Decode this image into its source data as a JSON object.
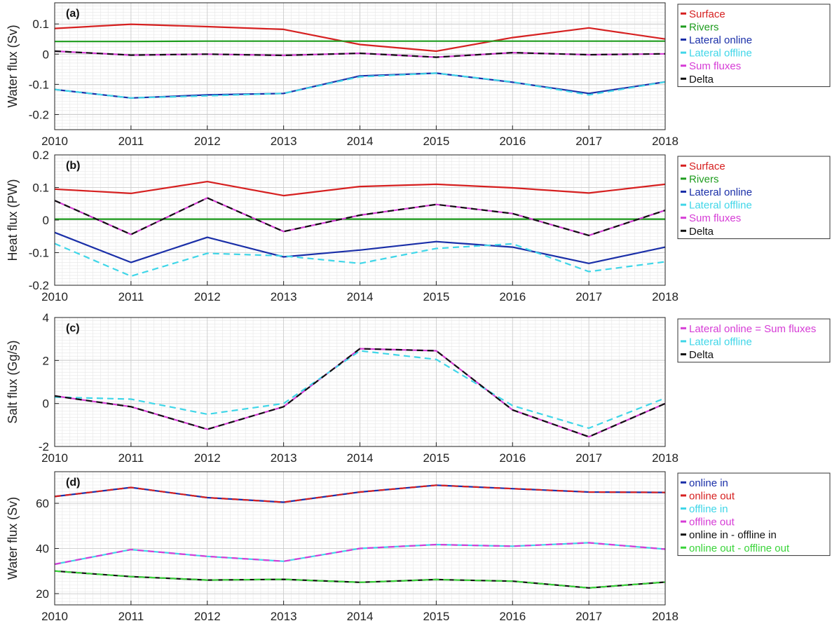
{
  "chart_data": [
    {
      "type": "line",
      "panel_label": "(a)",
      "ylabel": "Water flux (Sv)",
      "xlim": [
        2010,
        2018
      ],
      "ylim": [
        -0.25,
        0.17
      ],
      "yticks": [
        0.1,
        0,
        -0.1,
        -0.2
      ],
      "xticks": [
        2010,
        2011,
        2012,
        2013,
        2014,
        2015,
        2016,
        2017,
        2018
      ],
      "grid": "minor",
      "legend_position": "outside-right",
      "x": [
        2010,
        2011,
        2012,
        2013,
        2014,
        2015,
        2016,
        2017,
        2018
      ],
      "series": [
        {
          "name": "Surface",
          "color": "#d62020",
          "dash": "solid",
          "values": [
            0.085,
            0.099,
            0.091,
            0.082,
            0.032,
            0.01,
            0.055,
            0.087,
            0.05
          ]
        },
        {
          "name": "Rivers",
          "color": "#1e9c1e",
          "dash": "solid",
          "values": [
            0.042,
            0.042,
            0.043,
            0.043,
            0.043,
            0.043,
            0.043,
            0.043,
            0.043
          ]
        },
        {
          "name": "Lateral online",
          "color": "#1a2fa8",
          "dash": "solid",
          "values": [
            -0.117,
            -0.145,
            -0.135,
            -0.13,
            -0.072,
            -0.063,
            -0.093,
            -0.13,
            -0.092
          ]
        },
        {
          "name": "Lateral offline",
          "color": "#3fd6e8",
          "dash": "dashed",
          "values": [
            -0.117,
            -0.145,
            -0.138,
            -0.13,
            -0.075,
            -0.063,
            -0.092,
            -0.135,
            -0.092
          ]
        },
        {
          "name": "Sum fluxes",
          "color": "#d63cd6",
          "dash": "solid",
          "values": [
            0.01,
            -0.003,
            0.0,
            -0.004,
            0.003,
            -0.01,
            0.005,
            -0.002,
            0.001
          ]
        },
        {
          "name": "Delta",
          "color": "#111111",
          "dash": "dashed",
          "values": [
            0.01,
            -0.003,
            0.0,
            -0.004,
            0.003,
            -0.01,
            0.005,
            -0.002,
            0.001
          ]
        }
      ]
    },
    {
      "type": "line",
      "panel_label": "(b)",
      "ylabel": "Heat flux (PW)",
      "xlim": [
        2010,
        2018
      ],
      "ylim": [
        -0.2,
        0.2
      ],
      "yticks": [
        0.2,
        0.1,
        0,
        -0.1,
        -0.2
      ],
      "xticks": [
        2010,
        2011,
        2012,
        2013,
        2014,
        2015,
        2016,
        2017,
        2018
      ],
      "grid": "minor",
      "legend_position": "outside-right",
      "x": [
        2010,
        2011,
        2012,
        2013,
        2014,
        2015,
        2016,
        2017,
        2018
      ],
      "series": [
        {
          "name": "Surface",
          "color": "#d62020",
          "dash": "solid",
          "values": [
            0.095,
            0.082,
            0.118,
            0.075,
            0.103,
            0.11,
            0.099,
            0.083,
            0.11
          ]
        },
        {
          "name": "Rivers",
          "color": "#1e9c1e",
          "dash": "solid",
          "values": [
            0.003,
            0.003,
            0.003,
            0.003,
            0.003,
            0.003,
            0.003,
            0.003,
            0.003
          ]
        },
        {
          "name": "Lateral online",
          "color": "#1a2fa8",
          "dash": "solid",
          "values": [
            -0.038,
            -0.13,
            -0.053,
            -0.113,
            -0.092,
            -0.066,
            -0.083,
            -0.133,
            -0.083
          ]
        },
        {
          "name": "Lateral offline",
          "color": "#3fd6e8",
          "dash": "dashed",
          "values": [
            -0.072,
            -0.172,
            -0.102,
            -0.11,
            -0.133,
            -0.087,
            -0.073,
            -0.158,
            -0.128
          ]
        },
        {
          "name": "Sum fluxes",
          "color": "#d63cd6",
          "dash": "solid",
          "values": [
            0.06,
            -0.044,
            0.068,
            -0.035,
            0.015,
            0.048,
            0.02,
            -0.047,
            0.03
          ]
        },
        {
          "name": "Delta",
          "color": "#111111",
          "dash": "dashed",
          "values": [
            0.06,
            -0.044,
            0.068,
            -0.035,
            0.015,
            0.048,
            0.02,
            -0.047,
            0.03
          ]
        }
      ]
    },
    {
      "type": "line",
      "panel_label": "(c)",
      "ylabel": "Salt flux (Gg/s)",
      "xlim": [
        2010,
        2018
      ],
      "ylim": [
        -2,
        4
      ],
      "yticks": [
        4,
        2,
        0,
        -2
      ],
      "xticks": [
        2010,
        2011,
        2012,
        2013,
        2014,
        2015,
        2016,
        2017,
        2018
      ],
      "grid": "minor",
      "legend_position": "outside-right",
      "x": [
        2010,
        2011,
        2012,
        2013,
        2014,
        2015,
        2016,
        2017,
        2018
      ],
      "series": [
        {
          "name": "Lateral online = Sum fluxes",
          "color": "#d63cd6",
          "dash": "solid",
          "values": [
            0.35,
            -0.15,
            -1.2,
            -0.15,
            2.55,
            2.45,
            -0.3,
            -1.55,
            0.0
          ]
        },
        {
          "name": "Lateral offline",
          "color": "#3fd6e8",
          "dash": "dashed",
          "values": [
            0.3,
            0.2,
            -0.5,
            0.0,
            2.45,
            2.05,
            -0.1,
            -1.15,
            0.25
          ]
        },
        {
          "name": "Delta",
          "color": "#111111",
          "dash": "dashed",
          "values": [
            0.35,
            -0.15,
            -1.2,
            -0.15,
            2.55,
            2.45,
            -0.3,
            -1.55,
            0.0
          ]
        }
      ]
    },
    {
      "type": "line",
      "panel_label": "(d)",
      "ylabel": "Water flux (Sv)",
      "xlim": [
        2010,
        2018
      ],
      "ylim": [
        15,
        74
      ],
      "yticks": [
        60,
        40,
        20
      ],
      "xticks": [
        2010,
        2011,
        2012,
        2013,
        2014,
        2015,
        2016,
        2017,
        2018
      ],
      "grid": "minor",
      "legend_position": "outside-right",
      "x": [
        2010,
        2011,
        2012,
        2013,
        2014,
        2015,
        2016,
        2017,
        2018
      ],
      "series": [
        {
          "name": "online in",
          "color": "#1a2fa8",
          "dash": "solid",
          "values": [
            63.0,
            67.0,
            62.5,
            60.5,
            65.0,
            68.0,
            66.5,
            65.0,
            64.8
          ]
        },
        {
          "name": "online out",
          "color": "#d62020",
          "dash": "dashed",
          "values": [
            63.0,
            67.0,
            62.5,
            60.5,
            65.0,
            68.0,
            66.5,
            65.0,
            64.8
          ]
        },
        {
          "name": "offline in",
          "color": "#3fd6e8",
          "dash": "solid",
          "values": [
            33.0,
            39.5,
            36.5,
            34.3,
            40.0,
            41.7,
            41.0,
            42.5,
            39.7
          ]
        },
        {
          "name": "offline out",
          "color": "#d63cd6",
          "dash": "dashed",
          "values": [
            33.0,
            39.5,
            36.5,
            34.3,
            40.0,
            41.7,
            41.0,
            42.5,
            39.7
          ]
        },
        {
          "name": "online in - offline in",
          "color": "#111111",
          "dash": "solid",
          "values": [
            30.0,
            27.5,
            26.0,
            26.3,
            25.0,
            26.2,
            25.5,
            22.5,
            25.1
          ]
        },
        {
          "name": "online out - offline out",
          "color": "#3ad43a",
          "dash": "dashed",
          "values": [
            30.0,
            27.5,
            26.0,
            26.3,
            25.0,
            26.2,
            25.5,
            22.5,
            25.1
          ]
        }
      ]
    }
  ]
}
